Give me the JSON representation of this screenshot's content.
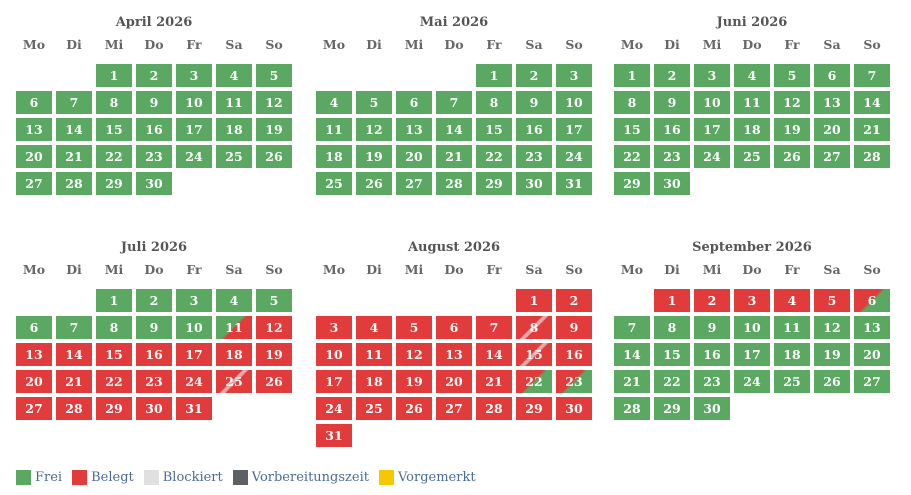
{
  "weekdays": [
    "Mo",
    "Di",
    "Mi",
    "Do",
    "Fr",
    "Sa",
    "So"
  ],
  "colors": {
    "frei": "#5aa862",
    "belegt": "#e23b3b",
    "blockiert": "#e0e0e0",
    "vorbereitungszeit": "#5d6166",
    "vorgemerkt": "#f5c800"
  },
  "months": [
    {
      "title": "April 2026",
      "offset": 2,
      "days": 30,
      "status": {
        "default": "free"
      }
    },
    {
      "title": "Mai 2026",
      "offset": 4,
      "days": 31,
      "status": {
        "default": "free"
      }
    },
    {
      "title": "Juni 2026",
      "offset": 0,
      "days": 30,
      "status": {
        "default": "free"
      }
    },
    {
      "title": "Juli 2026",
      "offset": 2,
      "days": 31,
      "status": {
        "default": "busy",
        "free": [
          1,
          2,
          3,
          4,
          5,
          6,
          7,
          8,
          9,
          10
        ],
        "g2r": [
          11
        ],
        "r2r": [
          25
        ]
      }
    },
    {
      "title": "August 2026",
      "offset": 5,
      "days": 31,
      "status": {
        "default": "busy",
        "r2r": [
          8,
          15
        ],
        "r2g": [
          22,
          23
        ],
        "free": []
      }
    },
    {
      "title": "September 2026",
      "offset": 1,
      "days": 30,
      "status": {
        "default": "free",
        "busy": [
          1,
          2,
          3,
          4,
          5
        ],
        "g2r": [],
        "r2g": [
          6
        ]
      }
    }
  ],
  "legend": [
    {
      "label": "Frei",
      "color": "#5aa862"
    },
    {
      "label": "Belegt",
      "color": "#e23b3b"
    },
    {
      "label": "Blockiert",
      "color": "#e0e0e0"
    },
    {
      "label": "Vorbereitungszeit",
      "color": "#5d6166"
    },
    {
      "label": "Vorgemerkt",
      "color": "#f5c800"
    }
  ]
}
